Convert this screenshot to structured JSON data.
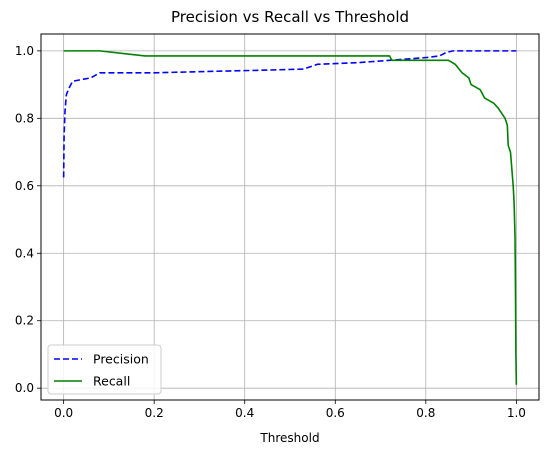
{
  "chart_data": {
    "type": "line",
    "title": "Precision vs Recall vs Threshold",
    "xlabel": "Threshold",
    "ylabel": "",
    "xlim": [
      -0.05,
      1.05
    ],
    "ylim": [
      -0.035,
      1.05
    ],
    "xticks": [
      0.0,
      0.2,
      0.4,
      0.6,
      0.8,
      1.0
    ],
    "xtick_labels": [
      "0.0",
      "0.2",
      "0.4",
      "0.6",
      "0.8",
      "1.0"
    ],
    "yticks": [
      0.0,
      0.2,
      0.4,
      0.6,
      0.8,
      1.0
    ],
    "ytick_labels": [
      "0.0",
      "0.2",
      "0.4",
      "0.6",
      "0.8",
      "1.0"
    ],
    "grid": true,
    "legend_position": "lower-left",
    "series": [
      {
        "name": "Precision",
        "color": "#0000ff",
        "style": "dashed",
        "points": [
          [
            0.0,
            0.625
          ],
          [
            0.001,
            0.75
          ],
          [
            0.003,
            0.82
          ],
          [
            0.006,
            0.87
          ],
          [
            0.012,
            0.89
          ],
          [
            0.02,
            0.91
          ],
          [
            0.04,
            0.915
          ],
          [
            0.06,
            0.92
          ],
          [
            0.08,
            0.935
          ],
          [
            0.2,
            0.935
          ],
          [
            0.35,
            0.94
          ],
          [
            0.45,
            0.943
          ],
          [
            0.53,
            0.946
          ],
          [
            0.56,
            0.96
          ],
          [
            0.65,
            0.965
          ],
          [
            0.72,
            0.972
          ],
          [
            0.8,
            0.98
          ],
          [
            0.83,
            0.985
          ],
          [
            0.845,
            0.995
          ],
          [
            0.86,
            1.0
          ],
          [
            1.0,
            1.0
          ]
        ]
      },
      {
        "name": "Recall",
        "color": "#008000",
        "style": "solid",
        "points": [
          [
            0.0,
            1.0
          ],
          [
            0.08,
            1.0
          ],
          [
            0.18,
            0.985
          ],
          [
            0.72,
            0.985
          ],
          [
            0.725,
            0.972
          ],
          [
            0.85,
            0.972
          ],
          [
            0.865,
            0.96
          ],
          [
            0.88,
            0.935
          ],
          [
            0.895,
            0.92
          ],
          [
            0.9,
            0.9
          ],
          [
            0.92,
            0.885
          ],
          [
            0.93,
            0.86
          ],
          [
            0.95,
            0.845
          ],
          [
            0.96,
            0.83
          ],
          [
            0.975,
            0.8
          ],
          [
            0.98,
            0.78
          ],
          [
            0.982,
            0.72
          ],
          [
            0.987,
            0.7
          ],
          [
            0.99,
            0.65
          ],
          [
            0.993,
            0.6
          ],
          [
            0.995,
            0.55
          ],
          [
            0.997,
            0.45
          ],
          [
            0.998,
            0.3
          ],
          [
            0.999,
            0.1
          ],
          [
            1.0,
            0.01
          ]
        ]
      }
    ]
  }
}
